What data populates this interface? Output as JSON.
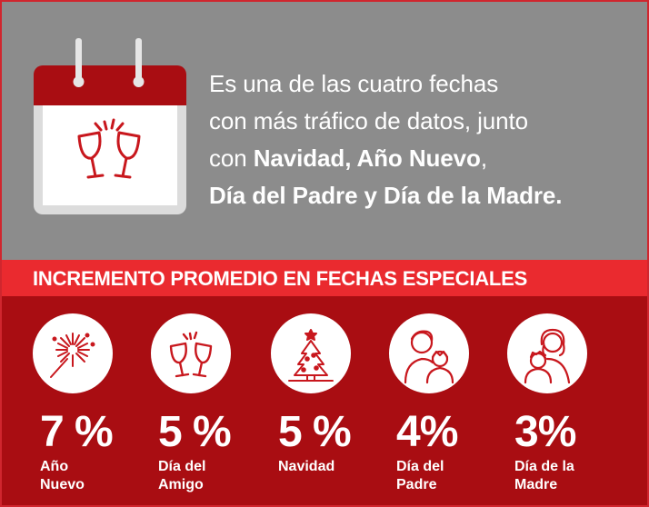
{
  "intro": {
    "line1": "Es una de las cuatro fechas",
    "line2": "con más tráfico de datos, junto",
    "line3_prefix": "con ",
    "line3_bold": "Navidad, Año Nuevo",
    "line3_suffix": ",",
    "line4_bold": "Día del Padre y Día de la Madre."
  },
  "band": {
    "title": "INCREMENTO PROMEDIO EN FECHAS ESPECIALES"
  },
  "stats": [
    {
      "value": "7 %",
      "label_line1": "Año",
      "label_line2": "Nuevo",
      "icon": "fireworks-icon"
    },
    {
      "value": "5 %",
      "label_line1": "Día del",
      "label_line2": "Amigo",
      "icon": "toast-glasses-icon"
    },
    {
      "value": "5 %",
      "label_line1": "Navidad",
      "label_line2": "",
      "icon": "christmas-tree-icon"
    },
    {
      "value": "4%",
      "label_line1": "Día del",
      "label_line2": "Padre",
      "icon": "father-child-icon"
    },
    {
      "value": "3%",
      "label_line1": "Día de la",
      "label_line2": "Madre",
      "icon": "mother-child-icon"
    }
  ],
  "colors": {
    "grey_panel": "#8c8c8c",
    "band_red": "#ea2a2f",
    "dark_red": "#a90d12",
    "icon_red": "#c8171d"
  }
}
